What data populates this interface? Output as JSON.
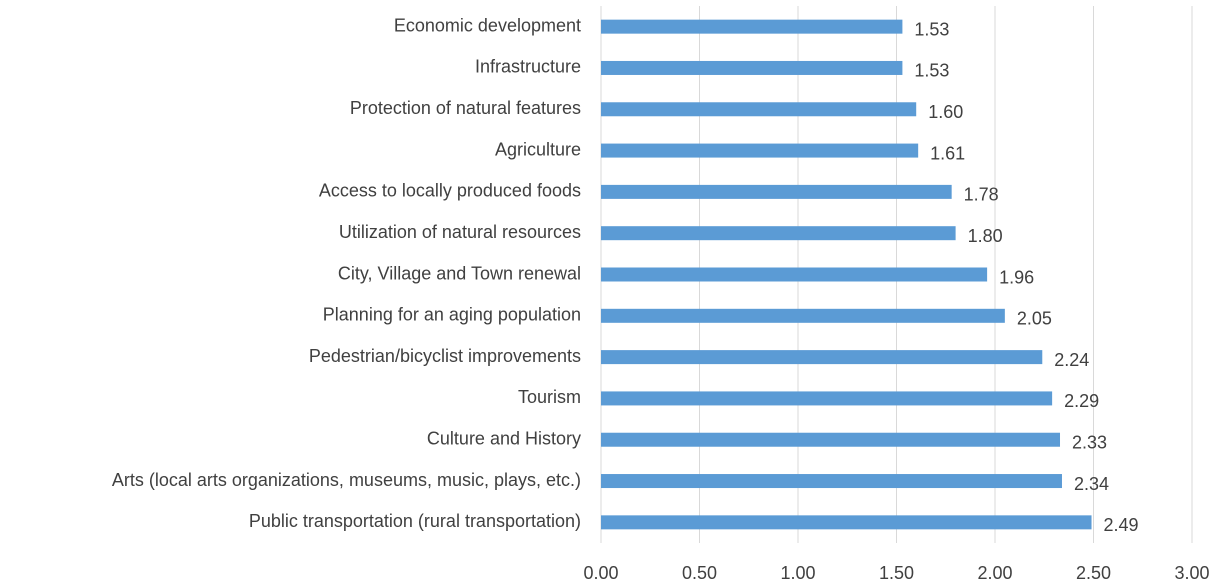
{
  "chart_data": {
    "type": "barh",
    "categories": [
      "Economic development",
      "Infrastructure",
      "Protection of natural features",
      "Agriculture",
      "Access to locally produced foods",
      "Utilization of natural resources",
      "City, Village and Town renewal",
      "Planning for an aging population",
      "Pedestrian/bicyclist improvements",
      "Tourism",
      "Culture and History",
      "Arts (local arts organizations, museums, music, plays, etc.)",
      "Public transportation (rural transportation)"
    ],
    "values": [
      1.53,
      1.53,
      1.6,
      1.61,
      1.78,
      1.8,
      1.96,
      2.05,
      2.24,
      2.29,
      2.33,
      2.34,
      2.49
    ],
    "value_labels": [
      "1.53",
      "1.53",
      "1.60",
      "1.61",
      "1.78",
      "1.80",
      "1.96",
      "2.05",
      "2.24",
      "2.29",
      "2.33",
      "2.34",
      "2.49"
    ],
    "color": "#5b9bd5",
    "xlim": [
      0,
      3
    ],
    "xticks": [
      {
        "value": 0,
        "label": "0.00"
      },
      {
        "value": 0.5,
        "label": "0.50"
      },
      {
        "value": 1,
        "label": "1.00"
      },
      {
        "value": 1.5,
        "label": "1.50"
      },
      {
        "value": 2,
        "label": "2.00"
      },
      {
        "value": 2.5,
        "label": "2.50"
      },
      {
        "value": 3,
        "label": "3.00"
      }
    ],
    "grid": true
  }
}
